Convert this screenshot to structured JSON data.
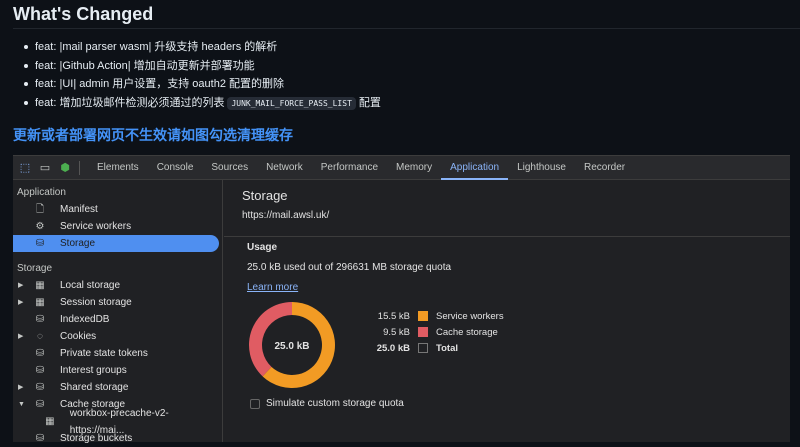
{
  "heading": "What's Changed",
  "bullets": [
    {
      "text": "feat: |mail parser wasm| 升级支持 headers 的解析"
    },
    {
      "text": "feat: |Github Action| 增加自动更新并部署功能"
    },
    {
      "text": "feat: |UI| admin 用户设置，支持 oauth2 配置的删除"
    },
    {
      "text": "feat: 增加垃圾邮件检测必须通过的列表",
      "code": "JUNK_MAIL_FORCE_PASS_LIST",
      "after": "配置"
    }
  ],
  "notice": "更新或者部署网页不生效请如图勾选清理缓存",
  "devtools": {
    "tabs": [
      "Elements",
      "Console",
      "Sources",
      "Network",
      "Performance",
      "Memory",
      "Application",
      "Lighthouse",
      "Recorder"
    ],
    "active_tab": "Application",
    "sidebar": {
      "app_section": "Application",
      "app_items": [
        {
          "label": "Manifest",
          "icon": "file-icon"
        },
        {
          "label": "Service workers",
          "icon": "gears-icon"
        },
        {
          "label": "Storage",
          "icon": "database-icon",
          "selected": true
        }
      ],
      "storage_section": "Storage",
      "storage_items": [
        {
          "label": "Local storage",
          "icon": "table-icon",
          "expand": "collapsed"
        },
        {
          "label": "Session storage",
          "icon": "table-icon",
          "expand": "collapsed"
        },
        {
          "label": "IndexedDB",
          "icon": "database-icon"
        },
        {
          "label": "Cookies",
          "icon": "cookie-icon",
          "expand": "collapsed"
        },
        {
          "label": "Private state tokens",
          "icon": "database-icon"
        },
        {
          "label": "Interest groups",
          "icon": "database-icon"
        },
        {
          "label": "Shared storage",
          "icon": "database-icon",
          "expand": "collapsed"
        },
        {
          "label": "Cache storage",
          "icon": "database-icon",
          "expand": "expanded"
        },
        {
          "label": "workbox-precache-v2-https://mai...",
          "icon": "table-icon",
          "child": true
        },
        {
          "label": "Storage buckets",
          "icon": "database-icon"
        }
      ]
    },
    "main": {
      "title": "Storage",
      "url": "https://mail.awsl.uk/",
      "usage_title": "Usage",
      "quota": "25.0 kB used out of 296631 MB storage quota",
      "learn_more": "Learn more",
      "center_label": "25.0 kB",
      "legend": [
        {
          "value": "15.5 kB",
          "label": "Service workers",
          "color": "#f29b24",
          "kb": 15.5
        },
        {
          "value": "9.5 kB",
          "label": "Cache storage",
          "color": "#e05c63",
          "kb": 9.5
        },
        {
          "value": "25.0 kB",
          "label": "Total",
          "color": "",
          "bold": true
        }
      ],
      "simulate": "Simulate custom storage quota",
      "simulate_checked": false
    }
  }
}
